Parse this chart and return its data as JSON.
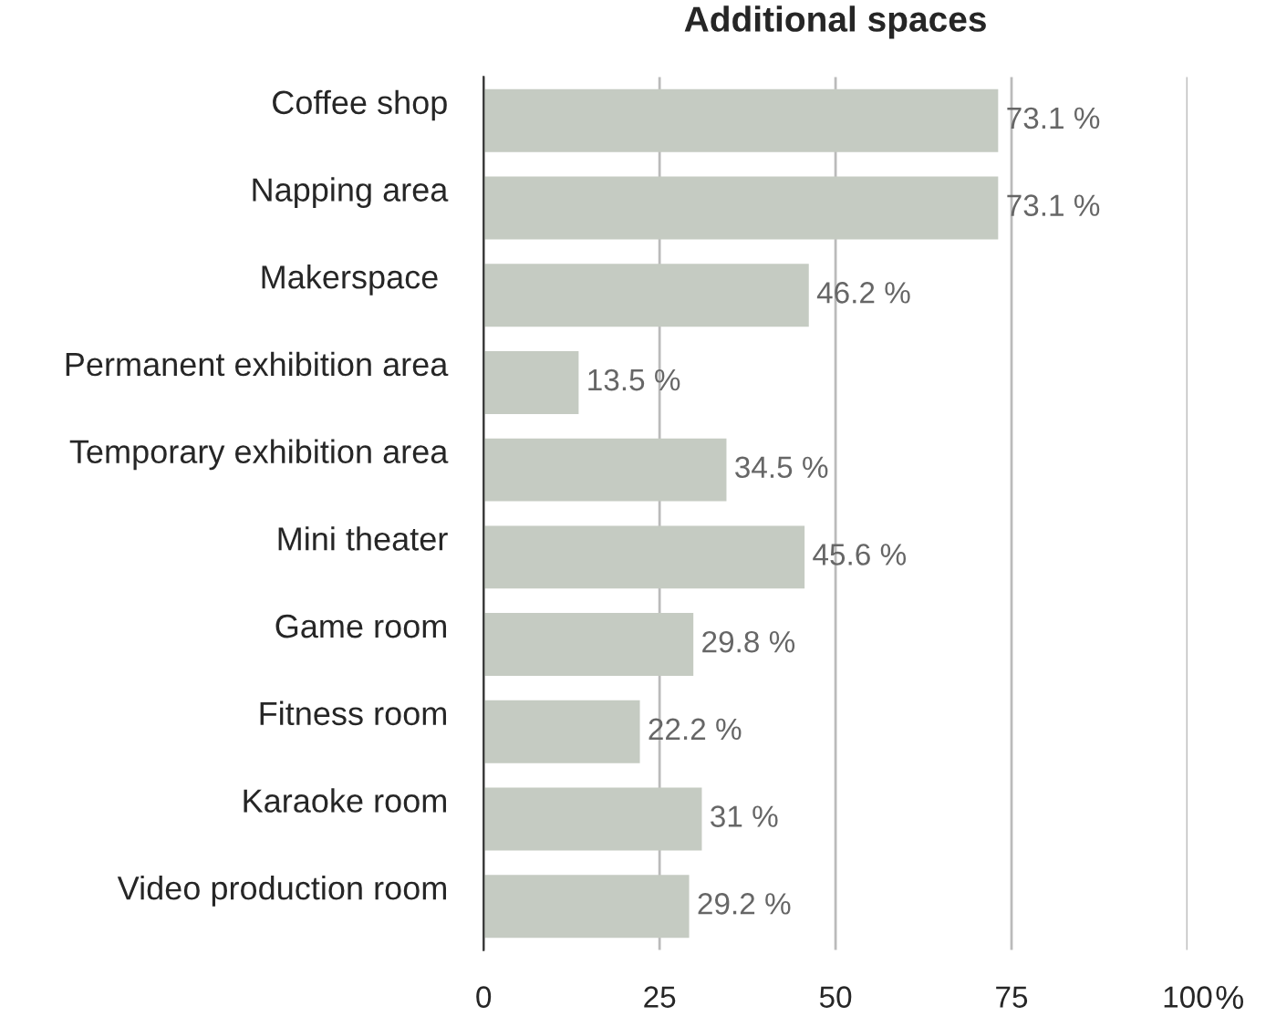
{
  "chart_data": {
    "type": "bar",
    "orientation": "horizontal",
    "title": "Additional spaces",
    "xlabel": "%",
    "categories": [
      "Coffee shop",
      "Napping area",
      "Makerspace ",
      "Permanent exhibition area",
      "Temporary exhibition area",
      "Mini theater",
      "Game room",
      "Fitness room",
      "Karaoke room",
      "Video production room"
    ],
    "values": [
      73.1,
      73.1,
      46.2,
      13.5,
      34.5,
      45.6,
      29.8,
      22.2,
      31,
      29.2
    ],
    "value_labels": [
      "73.1 %",
      "73.1 %",
      "46.2 %",
      "13.5 %",
      "34.5 %",
      "45.6 %",
      "29.8 %",
      "22.2 %",
      "31 %",
      "29.2 %"
    ],
    "color": "#c5cbc2",
    "xlim": [
      0,
      100
    ],
    "xticks": [
      0,
      25,
      50,
      75,
      100
    ],
    "grid": "x",
    "legend": false
  }
}
